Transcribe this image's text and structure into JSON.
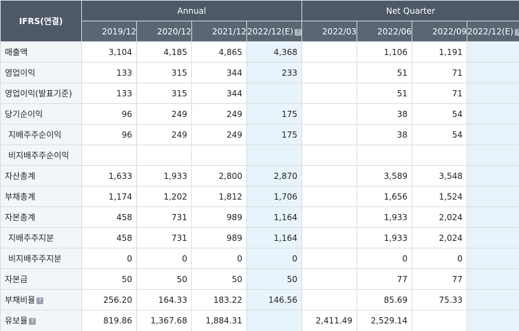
{
  "header": {
    "corner": "IFRS(연결)",
    "groups": {
      "annual": "Annual",
      "quarter": "Net Quarter"
    },
    "periods": [
      "2019/12",
      "2020/12",
      "2021/12",
      "2022/12(E)",
      "2022/03",
      "2022/06",
      "2022/09",
      "2022/12(E)"
    ]
  },
  "rows": [
    {
      "label": "매출액",
      "values": [
        "3,104",
        "4,185",
        "4,865",
        "4,368",
        "",
        "1,106",
        "1,191",
        ""
      ]
    },
    {
      "label": "영업이익",
      "values": [
        "133",
        "315",
        "344",
        "233",
        "",
        "51",
        "71",
        ""
      ]
    },
    {
      "label": "영업이익(발표기준)",
      "values": [
        "133",
        "315",
        "344",
        "",
        "",
        "51",
        "71",
        ""
      ]
    },
    {
      "label": "당기순이익",
      "values": [
        "96",
        "249",
        "249",
        "175",
        "",
        "38",
        "54",
        ""
      ]
    },
    {
      "label": "지배주주순이익",
      "values": [
        "96",
        "249",
        "249",
        "175",
        "",
        "38",
        "54",
        ""
      ]
    },
    {
      "label": "비지배주주순이익",
      "values": [
        "",
        "",
        "",
        "",
        "",
        "",
        "",
        ""
      ]
    },
    {
      "label": "자산총계",
      "values": [
        "1,633",
        "1,933",
        "2,800",
        "2,870",
        "",
        "3,589",
        "3,548",
        ""
      ]
    },
    {
      "label": "부채총계",
      "values": [
        "1,174",
        "1,202",
        "1,812",
        "1,706",
        "",
        "1,656",
        "1,524",
        ""
      ]
    },
    {
      "label": "자본총계",
      "values": [
        "458",
        "731",
        "989",
        "1,164",
        "",
        "1,933",
        "2,024",
        ""
      ]
    },
    {
      "label": "지배주주지분",
      "values": [
        "458",
        "731",
        "989",
        "1,164",
        "",
        "1,933",
        "2,024",
        ""
      ]
    },
    {
      "label": "비지배주주지분",
      "values": [
        "0",
        "0",
        "0",
        "0",
        "",
        "0",
        "0",
        ""
      ]
    },
    {
      "label": "자본금",
      "values": [
        "50",
        "50",
        "50",
        "50",
        "",
        "77",
        "77",
        ""
      ]
    },
    {
      "label": "부채비율",
      "values": [
        "256.20",
        "164.33",
        "183.22",
        "146.56",
        "",
        "85.69",
        "75.33",
        ""
      ]
    },
    {
      "label": "유보율",
      "values": [
        "819.86",
        "1,367.68",
        "1,884.31",
        "",
        "2,411.49",
        "2,529.14",
        "",
        ""
      ]
    }
  ]
}
